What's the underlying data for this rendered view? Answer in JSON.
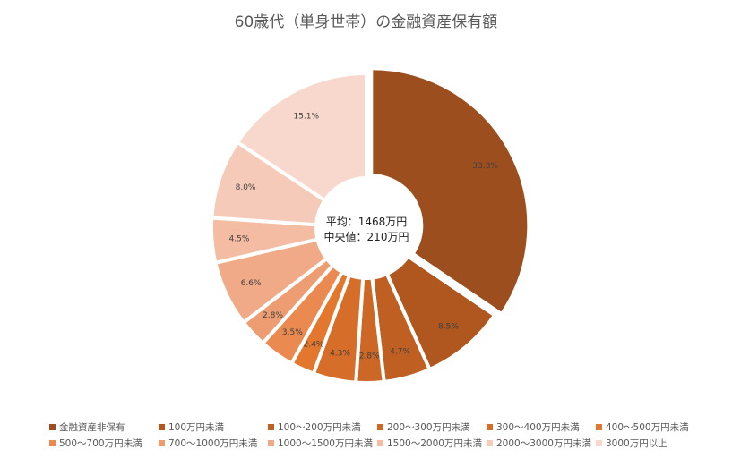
{
  "chart_data": {
    "type": "pie",
    "variant": "doughnut",
    "title": "60歳代（単身世帯）の金融資産保有額",
    "center_label": [
      "平均：1468万円",
      "中央値：210万円"
    ],
    "legend_position": "bottom",
    "categories": [
      "金融資産非保有",
      "100万円未満",
      "100〜200万円未満",
      "200〜300万円未満",
      "300〜400万円未満",
      "400〜500万円未満",
      "500〜700万円未満",
      "700〜1000万円未満",
      "1000〜1500万円未満",
      "1500〜2000万円未満",
      "2000〜3000万円未満",
      "3000万円以上"
    ],
    "values": [
      33.3,
      8.5,
      4.7,
      2.8,
      4.3,
      2.4,
      3.5,
      2.8,
      6.6,
      4.5,
      8.0,
      15.1
    ],
    "labels": [
      "33.3%",
      "8.5%",
      "4.7%",
      "2.8%",
      "4.3%",
      "2.4%",
      "3.5%",
      "2.8%",
      "6.6%",
      "4.5%",
      "8.0%",
      "15.1%"
    ],
    "colors": [
      "#9C4E1E",
      "#B0561F",
      "#C05F22",
      "#CD6726",
      "#D66E2A",
      "#E3772E",
      "#EA8A50",
      "#EE9C72",
      "#F0AA88",
      "#F3BCA3",
      "#F6CAB8",
      "#F8D8CC"
    ]
  },
  "legend": {
    "rows": [
      [
        0,
        1,
        2,
        3,
        4,
        5
      ],
      [
        6,
        7,
        8,
        9,
        10,
        11
      ]
    ]
  }
}
